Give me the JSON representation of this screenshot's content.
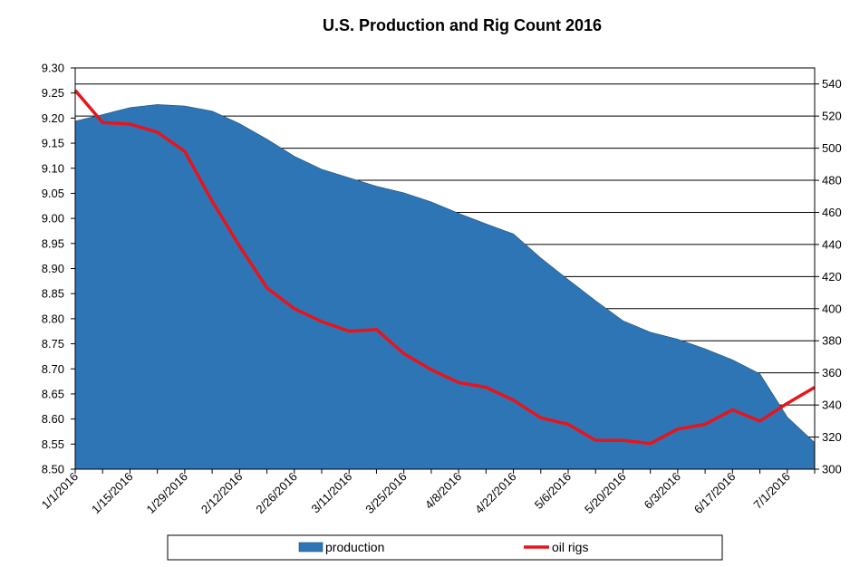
{
  "chart_data": {
    "type": "area",
    "title": "U.S. Production and Rig Count 2016",
    "x_tick_labels": [
      "1/1/2016",
      "1/15/2016",
      "1/29/2016",
      "2/12/2016",
      "2/26/2016",
      "3/11/2016",
      "3/25/2016",
      "4/8/2016",
      "4/22/2016",
      "5/6/2016",
      "5/20/2016",
      "6/3/2016",
      "6/17/2016",
      "7/1/2016"
    ],
    "x": [
      "1/1/2016",
      "1/8/2016",
      "1/15/2016",
      "1/22/2016",
      "1/29/2016",
      "2/5/2016",
      "2/12/2016",
      "2/19/2016",
      "2/26/2016",
      "3/4/2016",
      "3/11/2016",
      "3/18/2016",
      "3/25/2016",
      "4/1/2016",
      "4/8/2016",
      "4/15/2016",
      "4/22/2016",
      "4/29/2016",
      "5/6/2016",
      "5/13/2016",
      "5/20/2016",
      "5/27/2016",
      "6/3/2016",
      "6/10/2016",
      "6/17/2016",
      "6/24/2016",
      "7/1/2016",
      "7/8/2016"
    ],
    "y_left": {
      "min": 8.5,
      "max": 9.3,
      "step": 0.05,
      "tick_labels": [
        "8.50",
        "8.55",
        "8.60",
        "8.65",
        "8.70",
        "8.75",
        "8.80",
        "8.85",
        "8.90",
        "8.95",
        "9.00",
        "9.05",
        "9.10",
        "9.15",
        "9.20",
        "9.25",
        "9.30"
      ]
    },
    "y_right": {
      "min": 300,
      "max": 550,
      "step": 20,
      "tick_labels": [
        "300",
        "320",
        "340",
        "360",
        "380",
        "400",
        "420",
        "440",
        "460",
        "480",
        "500",
        "520",
        "540"
      ]
    },
    "grid": true,
    "legend_position": "bottom",
    "series": [
      {
        "name": "production",
        "axis": "left",
        "render": "area",
        "color": "#2E75B6",
        "values": [
          9.194,
          9.207,
          9.221,
          9.227,
          9.224,
          9.214,
          9.189,
          9.158,
          9.124,
          9.098,
          9.081,
          9.064,
          9.051,
          9.033,
          9.01,
          8.989,
          8.969,
          8.921,
          8.878,
          8.836,
          8.796,
          8.773,
          8.759,
          8.74,
          8.718,
          8.69,
          8.604,
          8.553
        ]
      },
      {
        "name": "oil rigs",
        "axis": "right",
        "render": "line",
        "color": "#E8141B",
        "values": [
          536,
          516,
          515,
          510,
          498,
          467,
          439,
          413,
          400,
          392,
          386,
          387,
          372,
          362,
          354,
          351,
          343,
          332,
          328,
          318,
          318,
          316,
          325,
          328,
          337,
          330,
          341,
          351
        ]
      }
    ]
  }
}
